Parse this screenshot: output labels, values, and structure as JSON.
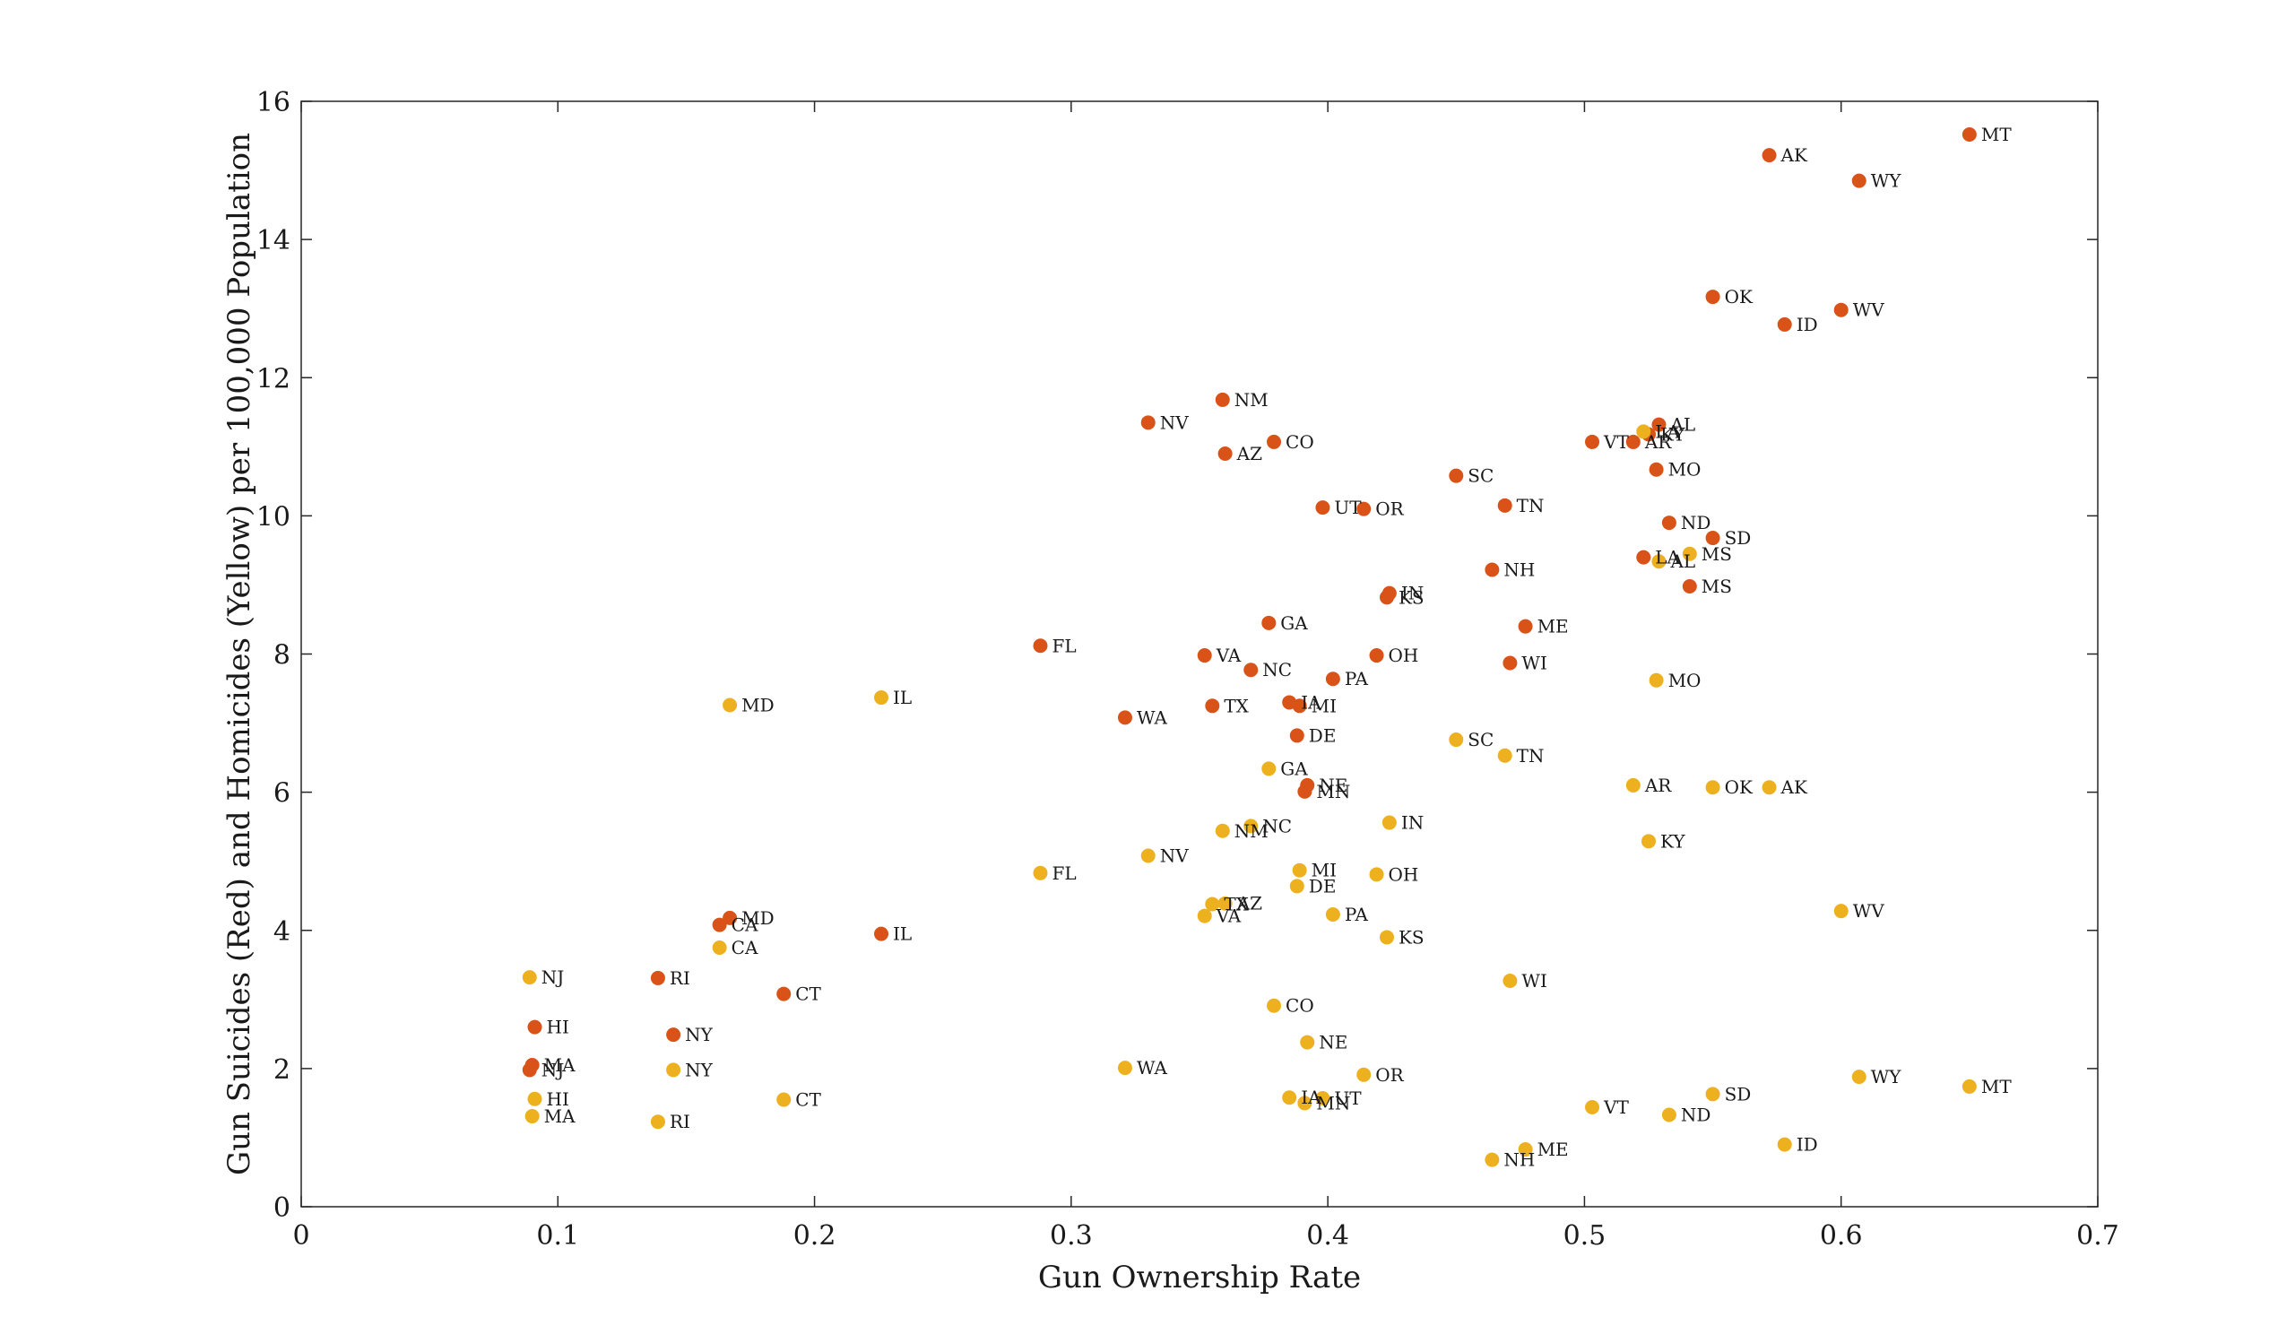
{
  "chart_data": {
    "type": "scatter",
    "title": "",
    "xlabel": "Gun Ownership Rate",
    "ylabel": "Gun Suicides (Red) and Homicides (Yellow) per 100,000 Population",
    "xlim": [
      0,
      0.7
    ],
    "ylim": [
      0,
      16
    ],
    "xticks": [
      0,
      0.1,
      0.2,
      0.3,
      0.4,
      0.5,
      0.6,
      0.7
    ],
    "xtick_labels": [
      "0",
      "0.1",
      "0.2",
      "0.3",
      "0.4",
      "0.5",
      "0.6",
      "0.7"
    ],
    "yticks": [
      0,
      2,
      4,
      6,
      8,
      10,
      12,
      14,
      16
    ],
    "ytick_labels": [
      "0",
      "2",
      "4",
      "6",
      "8",
      "10",
      "12",
      "14",
      "16"
    ],
    "grid": false,
    "series": [
      {
        "color": "#d95319",
        "points": [
          {
            "label": "MT",
            "x": 0.65,
            "y": 15.52
          },
          {
            "label": "AK",
            "x": 0.572,
            "y": 15.22
          },
          {
            "label": "WY",
            "x": 0.607,
            "y": 14.85
          },
          {
            "label": "OK",
            "x": 0.55,
            "y": 13.17
          },
          {
            "label": "WV",
            "x": 0.6,
            "y": 12.98
          },
          {
            "label": "ID",
            "x": 0.578,
            "y": 12.77
          },
          {
            "label": "NM",
            "x": 0.359,
            "y": 11.68
          },
          {
            "label": "NV",
            "x": 0.33,
            "y": 11.35
          },
          {
            "label": "AL",
            "x": 0.529,
            "y": 11.32
          },
          {
            "label": "KY",
            "x": 0.525,
            "y": 11.18
          },
          {
            "label": "CO",
            "x": 0.379,
            "y": 11.07
          },
          {
            "label": "VT",
            "x": 0.503,
            "y": 11.07
          },
          {
            "label": "AR",
            "x": 0.519,
            "y": 11.07
          },
          {
            "label": "AZ",
            "x": 0.36,
            "y": 10.9
          },
          {
            "label": "MO",
            "x": 0.528,
            "y": 10.67
          },
          {
            "label": "SC",
            "x": 0.45,
            "y": 10.58
          },
          {
            "label": "TN",
            "x": 0.469,
            "y": 10.15
          },
          {
            "label": "UT",
            "x": 0.398,
            "y": 10.12
          },
          {
            "label": "OR",
            "x": 0.414,
            "y": 10.1
          },
          {
            "label": "ND",
            "x": 0.533,
            "y": 9.9
          },
          {
            "label": "SD",
            "x": 0.55,
            "y": 9.68
          },
          {
            "label": "LA",
            "x": 0.523,
            "y": 9.4
          },
          {
            "label": "NH",
            "x": 0.464,
            "y": 9.22
          },
          {
            "label": "MS",
            "x": 0.541,
            "y": 8.98
          },
          {
            "label": "IN",
            "x": 0.424,
            "y": 8.88
          },
          {
            "label": "KS",
            "x": 0.423,
            "y": 8.82
          },
          {
            "label": "GA",
            "x": 0.377,
            "y": 8.45
          },
          {
            "label": "ME",
            "x": 0.477,
            "y": 8.4
          },
          {
            "label": "FL",
            "x": 0.288,
            "y": 8.12
          },
          {
            "label": "VA",
            "x": 0.352,
            "y": 7.98
          },
          {
            "label": "OH",
            "x": 0.419,
            "y": 7.98
          },
          {
            "label": "WI",
            "x": 0.471,
            "y": 7.87
          },
          {
            "label": "NC",
            "x": 0.37,
            "y": 7.77
          },
          {
            "label": "PA",
            "x": 0.402,
            "y": 7.64
          },
          {
            "label": "IA",
            "x": 0.385,
            "y": 7.3
          },
          {
            "label": "MI",
            "x": 0.389,
            "y": 7.25
          },
          {
            "label": "TX",
            "x": 0.355,
            "y": 7.25
          },
          {
            "label": "WA",
            "x": 0.321,
            "y": 7.08
          },
          {
            "label": "DE",
            "x": 0.388,
            "y": 6.82
          },
          {
            "label": "NE",
            "x": 0.392,
            "y": 6.1
          },
          {
            "label": "MN",
            "x": 0.391,
            "y": 6.01
          },
          {
            "label": "MD",
            "x": 0.167,
            "y": 4.18
          },
          {
            "label": "CA",
            "x": 0.163,
            "y": 4.08
          },
          {
            "label": "IL",
            "x": 0.226,
            "y": 3.95
          },
          {
            "label": "RI",
            "x": 0.139,
            "y": 3.31
          },
          {
            "label": "CT",
            "x": 0.188,
            "y": 3.08
          },
          {
            "label": "HI",
            "x": 0.091,
            "y": 2.6
          },
          {
            "label": "NY",
            "x": 0.145,
            "y": 2.49
          },
          {
            "label": "MA",
            "x": 0.09,
            "y": 2.05
          },
          {
            "label": "NJ",
            "x": 0.089,
            "y": 1.98
          }
        ]
      },
      {
        "color": "#edb120",
        "points": [
          {
            "label": "LA",
            "x": 0.523,
            "y": 11.22
          },
          {
            "label": "MS",
            "x": 0.541,
            "y": 9.45
          },
          {
            "label": "AL",
            "x": 0.529,
            "y": 9.34
          },
          {
            "label": "MO",
            "x": 0.528,
            "y": 7.62
          },
          {
            "label": "MD",
            "x": 0.167,
            "y": 7.26
          },
          {
            "label": "IL",
            "x": 0.226,
            "y": 7.37
          },
          {
            "label": "SC",
            "x": 0.45,
            "y": 6.76
          },
          {
            "label": "TN",
            "x": 0.469,
            "y": 6.53
          },
          {
            "label": "GA",
            "x": 0.377,
            "y": 6.34
          },
          {
            "label": "AR",
            "x": 0.519,
            "y": 6.1
          },
          {
            "label": "OK",
            "x": 0.55,
            "y": 6.07
          },
          {
            "label": "AK",
            "x": 0.572,
            "y": 6.07
          },
          {
            "label": "IN",
            "x": 0.424,
            "y": 5.56
          },
          {
            "label": "NC",
            "x": 0.37,
            "y": 5.51
          },
          {
            "label": "NM",
            "x": 0.359,
            "y": 5.44
          },
          {
            "label": "KY",
            "x": 0.525,
            "y": 5.29
          },
          {
            "label": "NV",
            "x": 0.33,
            "y": 5.08
          },
          {
            "label": "MI",
            "x": 0.389,
            "y": 4.87
          },
          {
            "label": "FL",
            "x": 0.288,
            "y": 4.83
          },
          {
            "label": "OH",
            "x": 0.419,
            "y": 4.81
          },
          {
            "label": "DE",
            "x": 0.388,
            "y": 4.64
          },
          {
            "label": "AZ",
            "x": 0.36,
            "y": 4.39
          },
          {
            "label": "TX",
            "x": 0.355,
            "y": 4.38
          },
          {
            "label": "WV",
            "x": 0.6,
            "y": 4.28
          },
          {
            "label": "PA",
            "x": 0.402,
            "y": 4.23
          },
          {
            "label": "VA",
            "x": 0.352,
            "y": 4.21
          },
          {
            "label": "KS",
            "x": 0.423,
            "y": 3.9
          },
          {
            "label": "CA",
            "x": 0.163,
            "y": 3.75
          },
          {
            "label": "NJ",
            "x": 0.089,
            "y": 3.32
          },
          {
            "label": "WI",
            "x": 0.471,
            "y": 3.27
          },
          {
            "label": "CO",
            "x": 0.379,
            "y": 2.91
          },
          {
            "label": "NE",
            "x": 0.392,
            "y": 2.38
          },
          {
            "label": "WA",
            "x": 0.321,
            "y": 2.01
          },
          {
            "label": "NY",
            "x": 0.145,
            "y": 1.98
          },
          {
            "label": "OR",
            "x": 0.414,
            "y": 1.91
          },
          {
            "label": "WY",
            "x": 0.607,
            "y": 1.88
          },
          {
            "label": "MT",
            "x": 0.65,
            "y": 1.74
          },
          {
            "label": "SD",
            "x": 0.55,
            "y": 1.63
          },
          {
            "label": "IA",
            "x": 0.385,
            "y": 1.58
          },
          {
            "label": "UT",
            "x": 0.398,
            "y": 1.57
          },
          {
            "label": "HI",
            "x": 0.091,
            "y": 1.56
          },
          {
            "label": "CT",
            "x": 0.188,
            "y": 1.55
          },
          {
            "label": "MN",
            "x": 0.391,
            "y": 1.5
          },
          {
            "label": "VT",
            "x": 0.503,
            "y": 1.44
          },
          {
            "label": "ND",
            "x": 0.533,
            "y": 1.33
          },
          {
            "label": "MA",
            "x": 0.09,
            "y": 1.31
          },
          {
            "label": "RI",
            "x": 0.139,
            "y": 1.23
          },
          {
            "label": "ID",
            "x": 0.578,
            "y": 0.9
          },
          {
            "label": "ME",
            "x": 0.477,
            "y": 0.83
          },
          {
            "label": "NH",
            "x": 0.464,
            "y": 0.68
          }
        ]
      }
    ]
  }
}
